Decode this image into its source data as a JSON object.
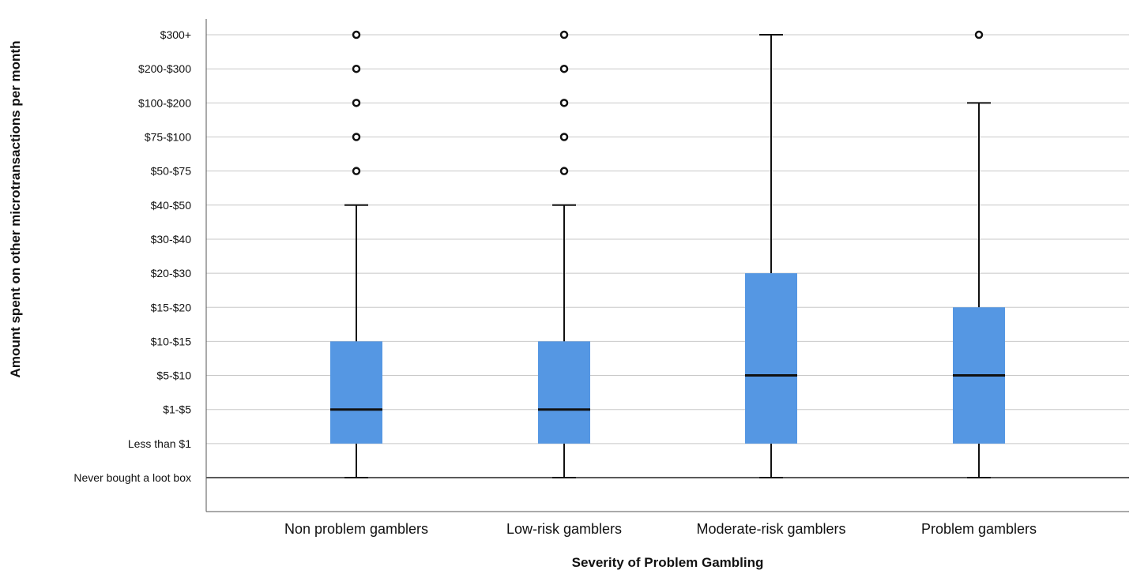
{
  "chart_data": {
    "type": "box",
    "title": "",
    "xlabel": "Severity of Problem Gambling",
    "ylabel": "Amount spent on other microtransactions per month",
    "y_categories": [
      "Never bought a loot box",
      "Less than $1",
      "$1-$5",
      "$5-$10",
      "$10-$15",
      "$15-$20",
      "$20-$30",
      "$30-$40",
      "$40-$50",
      "$50-$75",
      "$75-$100",
      "$100-$200",
      "$200-$300",
      "$300+"
    ],
    "categories": [
      "Non problem gamblers",
      "Low-risk gamblers",
      "Moderate-risk gamblers",
      "Problem gamblers"
    ],
    "grid": true,
    "box_color": "#5597e3",
    "boxes": [
      {
        "whisker_low": 0,
        "q1": 1,
        "median": 2,
        "q3": 4,
        "whisker_high": 8,
        "outliers": [
          9,
          10,
          11,
          12,
          13
        ]
      },
      {
        "whisker_low": 0,
        "q1": 1,
        "median": 2,
        "q3": 4,
        "whisker_high": 8,
        "outliers": [
          9,
          10,
          11,
          12,
          13
        ]
      },
      {
        "whisker_low": 0,
        "q1": 1,
        "median": 3,
        "q3": 6,
        "whisker_high": 13,
        "outliers": []
      },
      {
        "whisker_low": 0,
        "q1": 1,
        "median": 3,
        "q3": 5,
        "whisker_high": 11,
        "outliers": [
          13
        ]
      }
    ]
  }
}
